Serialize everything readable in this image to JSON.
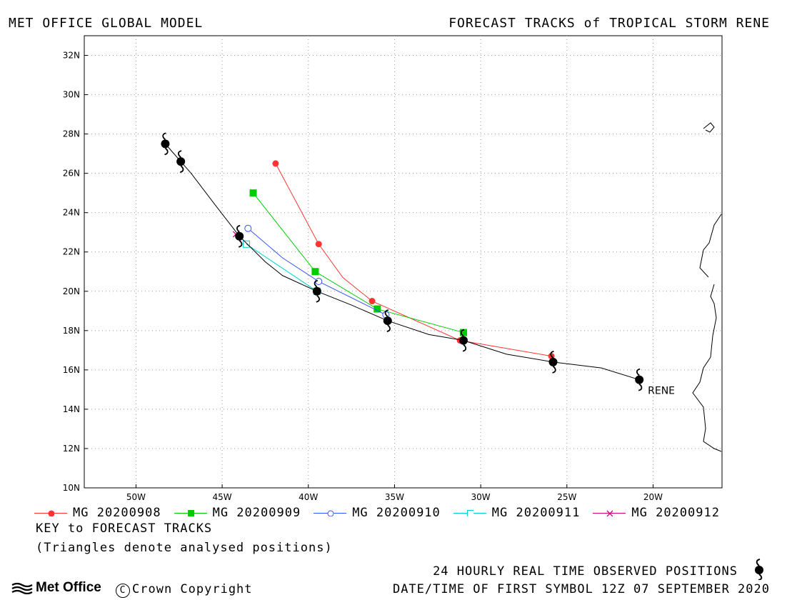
{
  "header": {
    "left": "MET OFFICE GLOBAL MODEL",
    "right": "FORECAST TRACKS of TROPICAL STORM RENE"
  },
  "map": {
    "lon_range": [
      -53,
      -16
    ],
    "lat_range": [
      10,
      33
    ],
    "lat_ticks": [
      "10N",
      "12N",
      "14N",
      "16N",
      "18N",
      "20N",
      "22N",
      "24N",
      "26N",
      "28N",
      "30N",
      "32N"
    ],
    "lon_ticks": [
      "50W",
      "45W",
      "40W",
      "35W",
      "30W",
      "25W",
      "20W"
    ],
    "storm_label": "RENE",
    "grid": true
  },
  "chart_data": {
    "type": "line",
    "title": "FORECAST TRACKS of TROPICAL STORM RENE",
    "x_units": "longitude (degrees)",
    "y_units": "latitude (degrees)",
    "xlim": [
      -53,
      -16
    ],
    "ylim": [
      10,
      33
    ],
    "observed": {
      "name": "24 HOURLY REAL TIME OBSERVED POSITIONS",
      "color": "#000000",
      "track": [
        [
          -20.8,
          15.5
        ],
        [
          -23,
          16.1
        ],
        [
          -25.8,
          16.4
        ],
        [
          -28.5,
          16.8
        ],
        [
          -31,
          17.5
        ],
        [
          -33,
          17.8
        ],
        [
          -35.4,
          18.5
        ],
        [
          -37.5,
          19.3
        ],
        [
          -39.5,
          20.0
        ],
        [
          -41.5,
          20.8
        ],
        [
          -42.5,
          21.5
        ],
        [
          -44,
          22.8
        ],
        [
          -45.5,
          24.5
        ],
        [
          -46.8,
          26.0
        ],
        [
          -47.4,
          26.6
        ],
        [
          -48.3,
          27.5
        ]
      ],
      "symbols": [
        [
          -20.8,
          15.5
        ],
        [
          -25.8,
          16.4
        ],
        [
          -31,
          17.5
        ],
        [
          -35.4,
          18.5
        ],
        [
          -39.5,
          20.0
        ],
        [
          -44,
          22.8
        ],
        [
          -47.4,
          26.6
        ],
        [
          -48.3,
          27.5
        ]
      ]
    },
    "series": [
      {
        "name": "MG 20200908",
        "color": "#ff3333",
        "marker": "circle-filled",
        "points": [
          [
            -25.9,
            16.7
          ],
          [
            -31.2,
            17.5
          ],
          [
            -36.3,
            19.5
          ],
          [
            -39.4,
            22.4
          ],
          [
            -41.9,
            26.5
          ]
        ],
        "track": [
          [
            -25.9,
            16.7
          ],
          [
            -31.2,
            17.5
          ],
          [
            -36.3,
            19.5
          ],
          [
            -38,
            20.7
          ],
          [
            -39.4,
            22.4
          ],
          [
            -41.9,
            26.5
          ]
        ]
      },
      {
        "name": "MG 20200909",
        "color": "#00cc00",
        "marker": "square-filled",
        "points": [
          [
            -31.0,
            17.9
          ],
          [
            -36.0,
            19.1
          ],
          [
            -39.6,
            21.0
          ],
          [
            -43.2,
            25.0
          ]
        ],
        "track": [
          [
            -31.0,
            17.9
          ],
          [
            -36.0,
            19.1
          ],
          [
            -39.6,
            21.0
          ],
          [
            -43.2,
            25.0
          ]
        ]
      },
      {
        "name": "MG 20200910",
        "color": "#3355ff",
        "marker": "circle-open",
        "points": [
          [
            -35.5,
            18.8
          ],
          [
            -39.4,
            20.5
          ],
          [
            -43.5,
            23.2
          ]
        ],
        "track": [
          [
            -35.5,
            18.8
          ],
          [
            -39.4,
            20.5
          ],
          [
            -41.5,
            21.7
          ],
          [
            -43.5,
            23.2
          ]
        ]
      },
      {
        "name": "MG 20200911",
        "color": "#00cccc",
        "marker": "square-open",
        "points": [
          [
            -39.5,
            20.0
          ],
          [
            -43.6,
            22.4
          ]
        ],
        "track": [
          [
            -39.5,
            20.0
          ],
          [
            -43.6,
            22.4
          ]
        ]
      },
      {
        "name": "MG 20200912",
        "color": "#cc0077",
        "marker": "x",
        "points": [
          [
            -44.2,
            22.9
          ]
        ],
        "track": [
          [
            -44.2,
            22.9
          ]
        ]
      }
    ]
  },
  "legend": {
    "items": [
      {
        "label": "MG 20200908",
        "color": "#ff3333",
        "marker": "circle-filled"
      },
      {
        "label": "MG 20200909",
        "color": "#00cc00",
        "marker": "square-filled"
      },
      {
        "label": "MG 20200910",
        "color": "#3355ff",
        "marker": "circle-open"
      },
      {
        "label": "MG 20200911",
        "color": "#00cccc",
        "marker": "square-open"
      },
      {
        "label": "MG 20200912",
        "color": "#cc0077",
        "marker": "x"
      }
    ]
  },
  "notes": {
    "key": "KEY to FORECAST TRACKS",
    "triangles": "(Triangles denote analysed positions)",
    "observed": "24 HOURLY REAL TIME OBSERVED POSITIONS",
    "datetime": "DATE/TIME OF FIRST SYMBOL 12Z 07 SEPTEMBER 2020",
    "copyright": "Crown Copyright",
    "logo": "Met Office"
  }
}
